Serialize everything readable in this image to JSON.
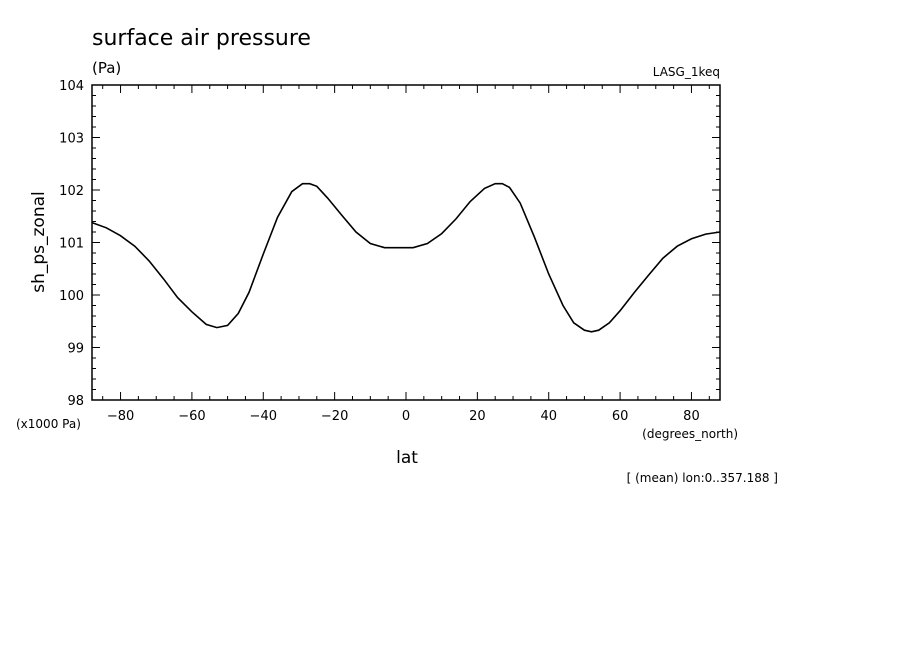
{
  "chart_data": {
    "type": "line",
    "title": "surface air pressure",
    "units": "(Pa)",
    "dataset": "LASG_1keq",
    "ylabel": "sh_ps_zonal",
    "xlabel": "lat",
    "x_units": "(degrees_north)",
    "y_scale_label": "(x1000 Pa)",
    "footnote": "[ (mean) lon:0..357.188 ]",
    "xlim": [
      -88,
      88
    ],
    "ylim": [
      98,
      104
    ],
    "grid": false,
    "x_ticks": [
      -80,
      -60,
      -40,
      -20,
      0,
      20,
      40,
      60,
      80
    ],
    "x_tick_labels": [
      "−80",
      "−60",
      "−40",
      "−20",
      "0",
      "20",
      "40",
      "60",
      "80"
    ],
    "y_ticks": [
      98,
      99,
      100,
      101,
      102,
      103,
      104
    ],
    "y_tick_labels": [
      "98",
      "99",
      "100",
      "101",
      "102",
      "103",
      "104"
    ],
    "series": [
      {
        "x": [
          -88,
          -84,
          -80,
          -76,
          -72,
          -68,
          -64,
          -60,
          -56,
          -53,
          -50,
          -47,
          -44,
          -40,
          -36,
          -32,
          -29,
          -27,
          -25,
          -22,
          -18,
          -14,
          -10,
          -6,
          -2,
          0,
          2,
          6,
          10,
          14,
          18,
          22,
          25,
          27,
          29,
          32,
          36,
          40,
          44,
          47,
          50,
          52,
          54,
          57,
          60,
          64,
          68,
          72,
          76,
          80,
          84,
          88
        ],
        "y": [
          101.38,
          101.28,
          101.13,
          100.93,
          100.65,
          100.31,
          99.95,
          99.68,
          99.44,
          99.38,
          99.42,
          99.65,
          100.05,
          100.78,
          101.48,
          101.97,
          102.12,
          102.12,
          102.07,
          101.85,
          101.52,
          101.2,
          100.98,
          100.9,
          100.9,
          100.9,
          100.9,
          100.98,
          101.17,
          101.45,
          101.78,
          102.03,
          102.12,
          102.12,
          102.05,
          101.75,
          101.1,
          100.4,
          99.8,
          99.47,
          99.33,
          99.3,
          99.33,
          99.47,
          99.7,
          100.05,
          100.38,
          100.7,
          100.93,
          101.07,
          101.16,
          101.2
        ]
      }
    ]
  }
}
